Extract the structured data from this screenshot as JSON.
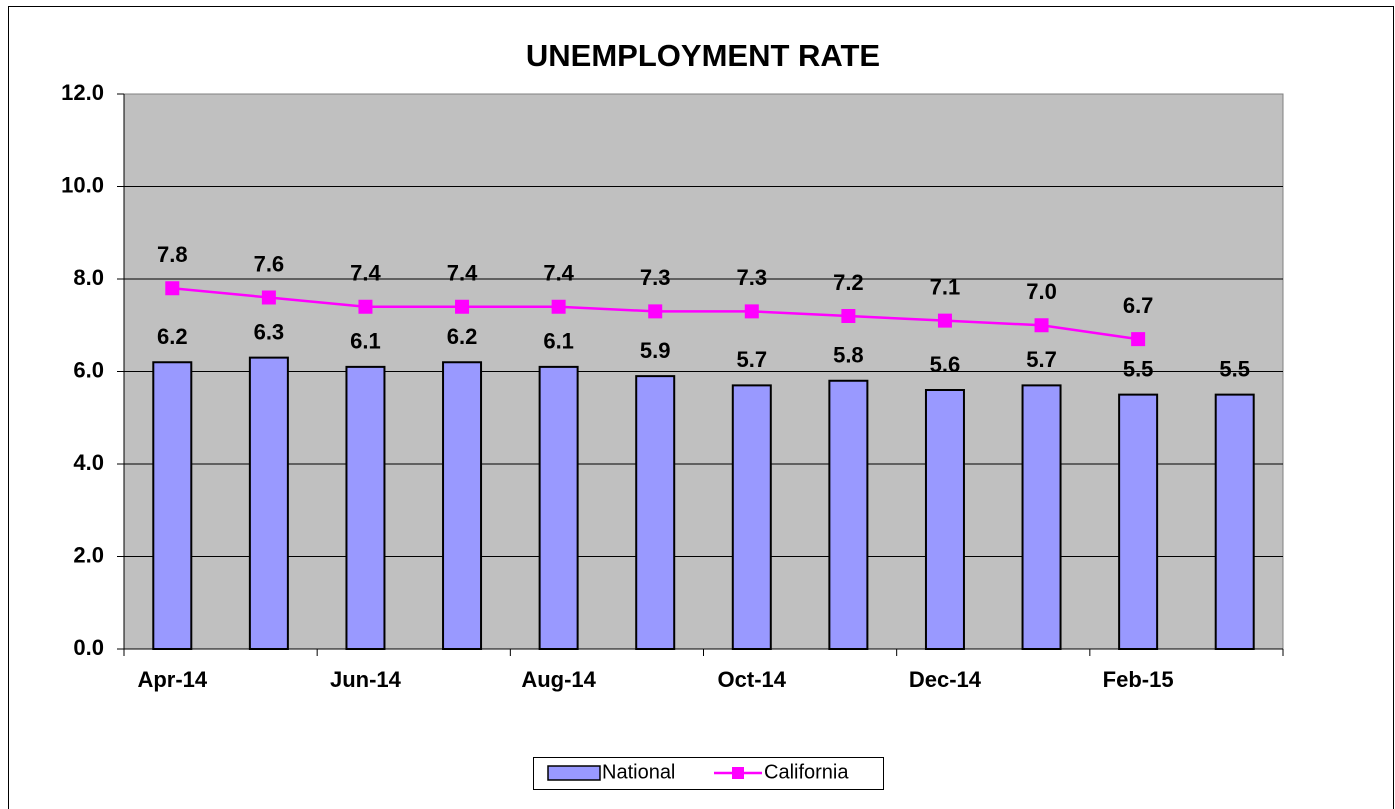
{
  "chart_data": {
    "type": "bar-line",
    "title": "UNEMPLOYMENT RATE",
    "categories": [
      "Apr-14",
      null,
      "Jun-14",
      null,
      "Aug-14",
      null,
      "Oct-14",
      null,
      "Dec-14",
      null,
      "Feb-15",
      null
    ],
    "series": [
      {
        "name": "National",
        "type": "bar",
        "color": "#9999ff",
        "values": [
          6.2,
          6.3,
          6.1,
          6.2,
          6.1,
          5.9,
          5.7,
          5.8,
          5.6,
          5.7,
          5.5,
          5.5
        ],
        "value_labels": [
          "6.2",
          "6.3",
          "6.1",
          "6.2",
          "6.1",
          "5.9",
          "5.7",
          "5.8",
          "5.6",
          "5.7",
          "5.5",
          "5.5"
        ]
      },
      {
        "name": "California",
        "type": "line",
        "color": "#ff00ff",
        "values": [
          7.8,
          7.6,
          7.4,
          7.4,
          7.4,
          7.3,
          7.3,
          7.2,
          7.1,
          7.0,
          6.7,
          null
        ],
        "value_labels": [
          "7.8",
          "7.6",
          "7.4",
          "7.4",
          "7.4",
          "7.3",
          "7.3",
          "7.2",
          "7.1",
          "7.0",
          "6.7",
          null
        ]
      }
    ],
    "ylim": [
      0,
      12
    ],
    "yticks": [
      {
        "value": 0,
        "label": "0.0"
      },
      {
        "value": 2,
        "label": "2.0"
      },
      {
        "value": 4,
        "label": "4.0"
      },
      {
        "value": 6,
        "label": "6.0"
      },
      {
        "value": 8,
        "label": "8.0"
      },
      {
        "value": 10,
        "label": "10.0"
      },
      {
        "value": 12,
        "label": "12.0"
      }
    ],
    "grid": true,
    "legend": "bottom"
  }
}
